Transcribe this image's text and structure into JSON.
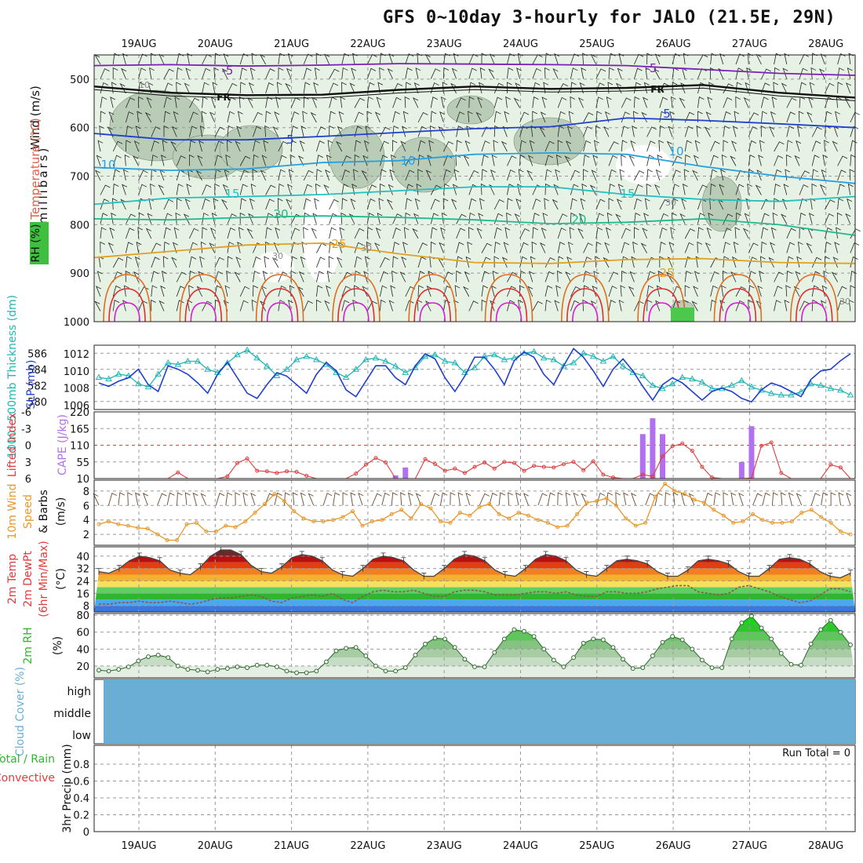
{
  "title": "GFS 0~10day 3-hourly for JALO (21.5E, 29N)",
  "dates": [
    "19AUG",
    "20AUG",
    "21AUG",
    "22AUG",
    "23AUG",
    "24AUG",
    "25AUG",
    "26AUG",
    "27AUG",
    "28AUG"
  ],
  "colors": {
    "rh_fill": "#e6f2e3",
    "rh_mid": "#b9cdb6",
    "rh_dark": "#8e9f8b",
    "cloud": "#6aaed6",
    "slp": "#1f3fcc",
    "thick": "#22b5b5",
    "lifted": "#e03c3c",
    "cape": "#b26ff0",
    "wind": "#e8982c",
    "rh2m": "#2fb52f"
  },
  "chart_data": [
    {
      "type": "contour",
      "name": "upper_air",
      "ylabel_parts": [
        "Wind (m/s)",
        "Temperature (°C)",
        "RH (%)",
        "(millibars)"
      ],
      "y_ticks": [
        500,
        600,
        700,
        800,
        900,
        1000
      ],
      "ylim": [
        450,
        1000
      ],
      "temperature_isotherm_labels": [
        "-5",
        "FR",
        "FR",
        "5",
        "5",
        "10",
        "10",
        "10",
        "15",
        "15",
        "20",
        "20",
        "25",
        "25",
        "30",
        "30",
        "30",
        "10"
      ],
      "isotherms": [
        {
          "t": -5,
          "p": [
            472,
            470,
            473,
            471,
            468,
            469,
            470,
            472,
            480,
            488,
            492
          ]
        },
        {
          "t": 0,
          "p": [
            515,
            528,
            533,
            532,
            522,
            515,
            520,
            518,
            512,
            528,
            538
          ]
        },
        {
          "t": 5,
          "p": [
            612,
            625,
            625,
            618,
            610,
            602,
            598,
            580,
            585,
            592,
            600
          ]
        },
        {
          "t": 10,
          "p": [
            682,
            688,
            685,
            672,
            668,
            655,
            652,
            655,
            680,
            700,
            715
          ]
        },
        {
          "t": 15,
          "p": [
            758,
            745,
            742,
            738,
            730,
            722,
            722,
            738,
            748,
            752,
            742
          ]
        },
        {
          "t": 20,
          "p": [
            788,
            790,
            785,
            782,
            785,
            790,
            798,
            795,
            788,
            800,
            822
          ]
        },
        {
          "t": 25,
          "p": [
            868,
            855,
            842,
            838,
            860,
            878,
            880,
            872,
            870,
            878,
            880
          ]
        }
      ]
    },
    {
      "type": "line",
      "name": "slp_thickness",
      "ylabel_left": "1000~500mb Thickness (dm)",
      "ylabel_right": "SLP (mb)",
      "left_ticks": [
        580,
        582,
        584,
        586
      ],
      "right_ticks": [
        1006,
        1008,
        1010,
        1012
      ],
      "thickness_range": [
        579,
        587
      ],
      "slp_range": [
        1005.5,
        1013
      ],
      "slp": [
        1008.6,
        1008.2,
        1008.8,
        1009.2,
        1010.2,
        1008.4,
        1007.6,
        1010.6,
        1010.2,
        1009.6,
        1008.6,
        1007.4,
        1009.6,
        1011.0,
        1009.2,
        1007.4,
        1006.8,
        1008.4,
        1009.8,
        1009.4,
        1008.4,
        1007.4,
        1009.6,
        1011.0,
        1010.0,
        1007.8,
        1007.0,
        1008.8,
        1010.6,
        1010.6,
        1009.2,
        1008.4,
        1010.6,
        1012.0,
        1011.4,
        1009.2,
        1007.6,
        1009.4,
        1011.6,
        1011.6,
        1010.2,
        1008.4,
        1011.2,
        1012.2,
        1011.6,
        1009.6,
        1008.4,
        1010.6,
        1012.6,
        1011.6,
        1010.0,
        1008.2,
        1010.2,
        1011.4,
        1010.0,
        1008.2,
        1006.6,
        1008.4,
        1009.2,
        1008.6,
        1007.6,
        1006.6,
        1007.6,
        1008.0,
        1007.6,
        1006.8,
        1006.4,
        1007.8,
        1008.6,
        1008.2,
        1007.6,
        1007.0,
        1009.0,
        1010.0,
        1010.2,
        1011.2,
        1012.0
      ],
      "thickness": [
        583.0,
        582.8,
        583.4,
        583.2,
        582.2,
        581.8,
        583.4,
        584.8,
        584.6,
        585.0,
        585.0,
        584.0,
        583.6,
        584.8,
        585.8,
        586.4,
        585.4,
        584.4,
        583.2,
        584.0,
        585.2,
        585.6,
        585.2,
        584.6,
        583.6,
        583.0,
        584.0,
        585.2,
        585.4,
        585.0,
        584.4,
        583.6,
        584.2,
        585.6,
        585.8,
        585.0,
        584.8,
        583.6,
        584.2,
        585.6,
        585.8,
        585.2,
        585.4,
        586.0,
        586.2,
        585.4,
        585.2,
        584.4,
        584.8,
        586.0,
        585.6,
        585.0,
        585.6,
        584.4,
        583.6,
        583.2,
        582.0,
        581.6,
        582.2,
        583.0,
        582.8,
        582.4,
        581.6,
        581.6,
        582.0,
        582.6,
        581.8,
        581.4,
        581.0,
        580.8,
        580.8,
        581.2,
        582.2,
        582.0,
        581.6,
        581.4,
        580.8
      ]
    },
    {
      "type": "line+bar",
      "name": "lifted_cape",
      "ylabel_left": "Lifted Index",
      "ylabel_right": "CAPE (J/kg)",
      "li_ticks": [
        "6",
        "3",
        "0",
        "-3",
        "-6"
      ],
      "cape_ticks": [
        "10",
        "55",
        "110",
        "165",
        "220"
      ],
      "li_range": [
        6,
        -6
      ],
      "lifted_index": [
        6,
        6,
        6,
        6,
        6,
        6,
        6,
        6,
        4.9,
        6,
        6,
        6,
        6,
        5.6,
        3.2,
        2.4,
        4.6,
        4.7,
        5.0,
        4.7,
        4.8,
        5.5,
        6,
        6,
        6,
        6,
        5.1,
        3.5,
        2.3,
        3.1,
        6,
        6,
        6,
        2.5,
        3.4,
        4.6,
        4.2,
        5.0,
        3.9,
        3.1,
        4.2,
        3.0,
        3.2,
        4.6,
        3.7,
        3.9,
        4.0,
        3.4,
        3.0,
        4.5,
        2.9,
        5.3,
        5.8,
        6,
        6,
        5.3,
        5.6,
        2.0,
        0.2,
        -0.3,
        1.0,
        3.9,
        5.8,
        6,
        6,
        6,
        5.9,
        0.1,
        -0.5,
        5.0,
        6,
        6,
        6,
        6,
        3.5,
        4.0,
        6
      ],
      "cape_bars": [
        {
          "i": 30,
          "v": 20
        },
        {
          "i": 31,
          "v": 45
        },
        {
          "i": 55,
          "v": 150
        },
        {
          "i": 56,
          "v": 200
        },
        {
          "i": 57,
          "v": 150
        },
        {
          "i": 65,
          "v": 62
        },
        {
          "i": 66,
          "v": 175
        }
      ]
    },
    {
      "type": "line",
      "name": "wind10m",
      "ylabel": "10m Wind Speed & Barbs (m/s)",
      "ticks": [
        2,
        4,
        6,
        8
      ],
      "ylim": [
        0.5,
        9.5
      ],
      "speed": [
        3.4,
        3.8,
        3.4,
        3.2,
        2.9,
        2.8,
        2.0,
        1.2,
        1.2,
        3.4,
        3.6,
        2.4,
        2.4,
        3.2,
        3.0,
        3.8,
        5.0,
        6.2,
        7.6,
        6.6,
        5.2,
        4.2,
        3.8,
        3.8,
        4.0,
        4.4,
        5.2,
        3.2,
        3.8,
        4.0,
        4.8,
        5.4,
        4.2,
        6.2,
        5.6,
        3.8,
        3.6,
        5.0,
        4.6,
        5.8,
        6.2,
        4.8,
        4.2,
        5.0,
        4.6,
        4.0,
        3.6,
        3.0,
        3.2,
        4.8,
        6.4,
        6.6,
        7.0,
        6.0,
        4.2,
        3.2,
        3.6,
        7.2,
        9.0,
        8.0,
        7.6,
        6.8,
        6.4,
        5.4,
        4.6,
        3.6,
        3.8,
        4.8,
        4.0,
        3.6,
        3.6,
        3.8,
        5.0,
        5.4,
        4.4,
        3.6,
        2.4,
        2.0
      ]
    },
    {
      "type": "area",
      "name": "temp_dewpt",
      "ylabel": "2m Temp 2m DewPt (6hr Min/Max) (°C)",
      "ticks": [
        8,
        16,
        24,
        32,
        40
      ],
      "ylim": [
        4,
        46
      ],
      "temp": [
        30,
        29,
        32,
        37,
        40,
        39,
        37,
        31,
        29,
        28,
        33,
        40,
        44,
        44,
        41,
        34,
        30,
        29,
        33,
        39,
        41,
        40,
        37,
        31,
        28,
        27,
        32,
        38,
        40,
        39,
        37,
        31,
        27,
        27,
        32,
        38,
        41,
        40,
        37,
        31,
        28,
        27,
        32,
        38,
        41,
        40,
        37,
        31,
        28,
        27,
        32,
        37,
        38,
        37,
        35,
        30,
        27,
        27,
        31,
        37,
        38,
        37,
        35,
        30,
        27,
        27,
        32,
        38,
        39,
        38,
        35,
        30,
        27,
        26,
        29
      ],
      "dewpt": [
        9,
        9,
        10,
        10,
        11,
        10,
        10,
        11,
        10,
        9,
        10,
        12,
        13,
        13,
        14,
        15,
        14,
        11,
        10,
        13,
        14,
        15,
        14,
        16,
        12,
        10,
        14,
        17,
        18,
        17,
        17,
        18,
        16,
        14,
        14,
        17,
        18,
        18,
        17,
        15,
        15,
        15,
        16,
        17,
        17,
        16,
        17,
        15,
        14,
        14,
        17,
        17,
        16,
        16,
        17,
        19,
        20,
        21,
        21,
        17,
        16,
        15,
        16,
        20,
        21,
        19,
        17,
        14,
        12,
        10,
        11,
        15,
        19,
        19,
        17
      ]
    },
    {
      "type": "area",
      "name": "rh2m",
      "ylabel": "2m RH (%)",
      "ticks": [
        20,
        40,
        60,
        80
      ],
      "ylim": [
        6,
        82
      ],
      "rh": [
        15,
        14,
        16,
        19,
        26,
        31,
        33,
        30,
        20,
        16,
        15,
        13,
        16,
        17,
        19,
        18,
        21,
        21,
        19,
        14,
        12,
        12,
        14,
        25,
        38,
        41,
        42,
        32,
        20,
        14,
        14,
        18,
        33,
        46,
        53,
        52,
        42,
        28,
        19,
        19,
        36,
        52,
        63,
        61,
        55,
        40,
        27,
        19,
        30,
        47,
        52,
        51,
        42,
        28,
        17,
        18,
        32,
        48,
        55,
        51,
        40,
        27,
        18,
        18,
        52,
        71,
        79,
        65,
        52,
        35,
        22,
        21,
        46,
        63,
        74,
        60,
        45
      ]
    }
  ],
  "cloud": {
    "ylabel": "Cloud Cover (%)",
    "levels": [
      "high",
      "middle",
      "low"
    ]
  },
  "precip": {
    "ylabel_left": "Total / Rain Convective",
    "ylabel": "3hr Precip (mm)",
    "ticks": [
      "0",
      "0.2",
      "0.4",
      "0.6",
      "0.8"
    ],
    "run_total": "Run Total = 0"
  }
}
